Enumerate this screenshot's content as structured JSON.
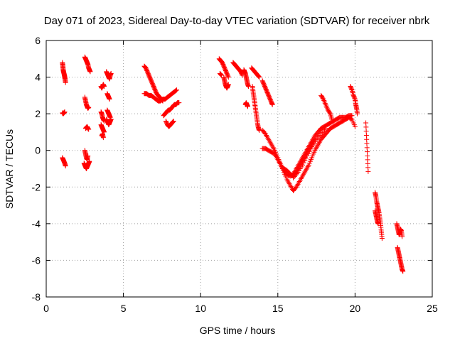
{
  "chart_data": {
    "type": "scatter",
    "title": "Day 071 of 2023, Sidereal Day-to-day VTEC variation (SDTVAR) for receiver nbrk",
    "xlabel": "GPS time / hours",
    "ylabel": "SDTVAR / TECUs",
    "xlim": [
      0,
      25
    ],
    "ylim": [
      -8,
      6
    ],
    "xticks": [
      "0",
      "5",
      "10",
      "15",
      "20",
      "25"
    ],
    "yticks": [
      "-8",
      "-6",
      "-4",
      "-2",
      "0",
      "2",
      "4",
      "6"
    ],
    "grid": true,
    "marker": "+",
    "color": "#ff0000",
    "series": [
      {
        "name": "SDTVAR",
        "segments": [
          {
            "x": [
              1.05,
              1.08,
              1.1,
              1.12,
              1.15,
              1.18,
              1.2,
              1.22,
              1.25
            ],
            "y": [
              4.8,
              4.6,
              4.4,
              4.3,
              4.2,
              4.1,
              4.0,
              3.9,
              3.7
            ]
          },
          {
            "x": [
              1.05,
              1.1,
              1.15,
              1.2
            ],
            "y": [
              2.05,
              2.0,
              2.05,
              2.1
            ]
          },
          {
            "x": [
              1.05,
              1.1,
              1.15,
              1.2,
              1.25
            ],
            "y": [
              -0.4,
              -0.5,
              -0.6,
              -0.7,
              -0.85
            ]
          },
          {
            "x": [
              2.5,
              2.55,
              2.6,
              2.65,
              2.7,
              2.75,
              2.8,
              2.85
            ],
            "y": [
              5.1,
              5.0,
              4.9,
              4.8,
              4.7,
              4.5,
              4.4,
              4.3
            ]
          },
          {
            "x": [
              2.5,
              2.55,
              2.6,
              2.65,
              2.7,
              2.75
            ],
            "y": [
              2.9,
              2.7,
              2.5,
              2.4,
              2.3,
              2.35
            ]
          },
          {
            "x": [
              2.55,
              2.6,
              2.65,
              2.7,
              2.75
            ],
            "y": [
              1.2,
              1.25,
              1.3,
              1.2,
              1.15
            ]
          },
          {
            "x": [
              2.5,
              2.55,
              2.6,
              2.65,
              2.7
            ],
            "y": [
              0.0,
              -0.2,
              -0.4,
              -0.5,
              -0.3
            ]
          },
          {
            "x": [
              2.45,
              2.5,
              2.55,
              2.6,
              2.65,
              2.7,
              2.75,
              2.8
            ],
            "y": [
              -0.7,
              -0.8,
              -0.9,
              -1.0,
              -0.9,
              -0.8,
              -0.7,
              -0.6
            ]
          },
          {
            "x": [
              3.55,
              3.6,
              3.65,
              3.7,
              3.75
            ],
            "y": [
              3.5,
              3.4,
              3.5,
              3.6,
              3.5
            ]
          },
          {
            "x": [
              3.55,
              3.6,
              3.65,
              3.7,
              3.75
            ],
            "y": [
              2.1,
              2.0,
              1.8,
              1.7,
              1.6
            ]
          },
          {
            "x": [
              3.55,
              3.6,
              3.65,
              3.7,
              3.75
            ],
            "y": [
              1.4,
              1.3,
              1.2,
              1.1,
              1.0
            ]
          },
          {
            "x": [
              3.6,
              3.65,
              3.7
            ],
            "y": [
              0.8,
              0.9,
              0.7
            ]
          },
          {
            "x": [
              3.9,
              3.95,
              4.0,
              4.05,
              4.1,
              4.15,
              4.2
            ],
            "y": [
              4.3,
              4.2,
              4.1,
              4.0,
              3.9,
              4.1,
              4.2
            ]
          },
          {
            "x": [
              3.95,
              4.0,
              4.05,
              4.1
            ],
            "y": [
              3.1,
              3.0,
              2.9,
              2.8
            ]
          },
          {
            "x": [
              3.95,
              4.0,
              4.05,
              4.1,
              4.15
            ],
            "y": [
              2.2,
              2.1,
              2.0,
              1.9,
              1.8
            ]
          },
          {
            "x": [
              3.9,
              3.95,
              4.0,
              4.05,
              4.1,
              4.15,
              4.2
            ],
            "y": [
              1.7,
              1.6,
              1.5,
              1.4,
              1.5,
              1.6,
              1.7
            ]
          },
          {
            "x": [
              6.35,
              6.45,
              6.55,
              6.65,
              6.75,
              6.85,
              6.95,
              7.05,
              7.15,
              7.25,
              7.35,
              7.45,
              7.55
            ],
            "y": [
              4.6,
              4.5,
              4.3,
              4.1,
              3.9,
              3.7,
              3.5,
              3.3,
              3.1,
              3.0,
              2.9,
              2.8,
              2.7
            ]
          },
          {
            "x": [
              6.35,
              6.5,
              6.65,
              6.8,
              6.95,
              7.1,
              7.25,
              7.4,
              7.55,
              7.7,
              7.85,
              8.0,
              8.15,
              8.3,
              8.45
            ],
            "y": [
              3.1,
              3.1,
              3.0,
              3.0,
              2.9,
              2.8,
              2.7,
              2.7,
              2.8,
              2.8,
              2.9,
              3.0,
              3.1,
              3.2,
              3.3
            ]
          },
          {
            "x": [
              7.6,
              7.7,
              7.8,
              7.9,
              8.0,
              8.1,
              8.2,
              8.3,
              8.4,
              8.5,
              8.6
            ],
            "y": [
              1.9,
              2.0,
              2.1,
              2.2,
              2.2,
              2.3,
              2.4,
              2.5,
              2.5,
              2.6,
              2.6
            ]
          },
          {
            "x": [
              7.75,
              7.85,
              7.95,
              8.05,
              8.15,
              8.25
            ],
            "y": [
              1.6,
              1.4,
              1.3,
              1.4,
              1.5,
              1.6
            ]
          },
          {
            "x": [
              11.2,
              11.3,
              11.4,
              11.5,
              11.6,
              11.7,
              11.8
            ],
            "y": [
              5.0,
              4.9,
              4.8,
              4.6,
              4.4,
              4.2,
              4.0
            ]
          },
          {
            "x": [
              11.25,
              11.35
            ],
            "y": [
              4.2,
              4.1
            ]
          },
          {
            "x": [
              11.5,
              11.55,
              11.6,
              11.65,
              11.7,
              11.75,
              11.8
            ],
            "y": [
              4.0,
              3.8,
              3.6,
              3.5,
              3.4,
              3.5,
              3.6
            ]
          },
          {
            "x": [
              12.1,
              12.2,
              12.3,
              12.4,
              12.5,
              12.6,
              12.7
            ],
            "y": [
              4.8,
              4.7,
              4.6,
              4.5,
              4.4,
              4.3,
              4.1
            ]
          },
          {
            "x": [
              12.8,
              12.85,
              12.9,
              12.95,
              13.0,
              13.05,
              13.1
            ],
            "y": [
              4.4,
              4.3,
              4.2,
              4.0,
              3.8,
              3.6,
              3.5
            ]
          },
          {
            "x": [
              12.9,
              12.95,
              13.0,
              13.05
            ],
            "y": [
              2.5,
              2.6,
              2.5,
              2.4
            ]
          },
          {
            "x": [
              13.3,
              13.4,
              13.5,
              13.6,
              13.7,
              13.8
            ],
            "y": [
              4.5,
              4.4,
              4.3,
              4.2,
              4.1,
              4.0
            ]
          },
          {
            "x": [
              13.35,
              13.4,
              13.45,
              13.5,
              13.55,
              13.6,
              13.65,
              13.7,
              13.75,
              13.8
            ],
            "y": [
              3.5,
              3.2,
              2.9,
              2.6,
              2.3,
              2.0,
              1.7,
              1.4,
              1.2,
              1.1
            ]
          },
          {
            "x": [
              14.0,
              14.1,
              14.2,
              14.3,
              14.4,
              14.5,
              14.6,
              14.65
            ],
            "y": [
              3.8,
              3.6,
              3.4,
              3.2,
              3.0,
              2.8,
              2.6,
              2.5
            ]
          },
          {
            "x": [
              14.0,
              14.2,
              14.4,
              14.6,
              14.8,
              15.0,
              15.2,
              15.4,
              15.6,
              15.8,
              16.0,
              16.2,
              16.4,
              16.6,
              16.8,
              17.0,
              17.2,
              17.4,
              17.6,
              17.8,
              18.0,
              18.2,
              18.4,
              18.6,
              18.8,
              19.0,
              19.2,
              19.4,
              19.6,
              19.8,
              20.0
            ],
            "y": [
              1.1,
              0.9,
              0.6,
              0.3,
              0.0,
              -0.4,
              -0.8,
              -1.2,
              -1.6,
              -1.9,
              -2.2,
              -2.0,
              -1.7,
              -1.4,
              -1.1,
              -0.8,
              -0.4,
              0.0,
              0.3,
              0.6,
              0.8,
              1.0,
              1.2,
              1.3,
              1.4,
              1.5,
              1.6,
              1.7,
              1.8,
              1.7,
              1.3
            ]
          },
          {
            "x": [
              14.0,
              14.2,
              14.4,
              14.6,
              14.8,
              15.0,
              15.2,
              15.4,
              15.6,
              15.8,
              16.0,
              16.2,
              16.4,
              16.6,
              16.8,
              17.0,
              17.2,
              17.4,
              17.6,
              17.8,
              18.0,
              18.2,
              18.4,
              18.6,
              18.8,
              19.0,
              19.2,
              19.4,
              19.6,
              19.8
            ],
            "y": [
              0.1,
              0.1,
              0.0,
              -0.1,
              -0.2,
              -0.5,
              -0.8,
              -1.1,
              -1.3,
              -1.4,
              -1.3,
              -1.0,
              -0.7,
              -0.4,
              -0.1,
              0.2,
              0.5,
              0.8,
              1.0,
              1.2,
              1.3,
              1.4,
              1.5,
              1.6,
              1.7,
              1.8,
              1.8,
              1.8,
              1.9,
              1.9
            ]
          },
          {
            "x": [
              15.4,
              15.6,
              15.8,
              16.0,
              16.2,
              16.4,
              16.6,
              16.8,
              17.0,
              17.2,
              17.4
            ],
            "y": [
              -1.0,
              -1.1,
              -1.3,
              -1.4,
              -1.2,
              -0.9,
              -0.6,
              -0.3,
              0.0,
              0.3,
              0.6
            ]
          },
          {
            "x": [
              16.0,
              16.3,
              16.6,
              16.9,
              17.2,
              17.5,
              17.8,
              18.1
            ],
            "y": [
              -1.5,
              -1.2,
              -0.8,
              -0.3,
              0.2,
              0.6,
              0.9,
              1.2
            ]
          },
          {
            "x": [
              17.8,
              17.95,
              18.1,
              18.25,
              18.4,
              18.5
            ],
            "y": [
              3.0,
              2.8,
              2.5,
              2.2,
              2.0,
              1.7
            ]
          },
          {
            "x": [
              19.7,
              19.8,
              19.9,
              20.0,
              20.05,
              20.1,
              20.15
            ],
            "y": [
              3.5,
              3.3,
              3.0,
              2.8,
              2.5,
              2.3,
              2.0
            ]
          },
          {
            "x": [
              20.7,
              20.75,
              20.8,
              20.85
            ],
            "y": [
              1.5,
              0.6,
              -0.3,
              -1.15
            ]
          },
          {
            "x": [
              21.3,
              21.35,
              21.4,
              21.45,
              21.5,
              21.55,
              21.6,
              21.65,
              21.7,
              21.75
            ],
            "y": [
              -2.3,
              -2.5,
              -2.8,
              -3.0,
              -3.2,
              -3.4,
              -3.7,
              -4.0,
              -4.4,
              -4.8
            ]
          },
          {
            "x": [
              21.3,
              21.35,
              21.4,
              21.45,
              21.5
            ],
            "y": [
              -3.3,
              -3.5,
              -3.7,
              -3.9,
              -4.0
            ]
          },
          {
            "x": [
              22.7,
              22.75,
              22.8,
              22.85,
              22.9,
              22.95,
              23.0,
              23.05
            ],
            "y": [
              -4.0,
              -4.2,
              -4.4,
              -4.6,
              -4.5,
              -4.3,
              -4.4,
              -4.7
            ]
          },
          {
            "x": [
              22.75,
              22.8,
              22.85,
              22.9,
              22.95,
              23.0,
              23.05,
              23.1
            ],
            "y": [
              -5.3,
              -5.5,
              -5.7,
              -5.9,
              -6.1,
              -6.3,
              -6.5,
              -6.6
            ]
          }
        ]
      }
    ]
  }
}
